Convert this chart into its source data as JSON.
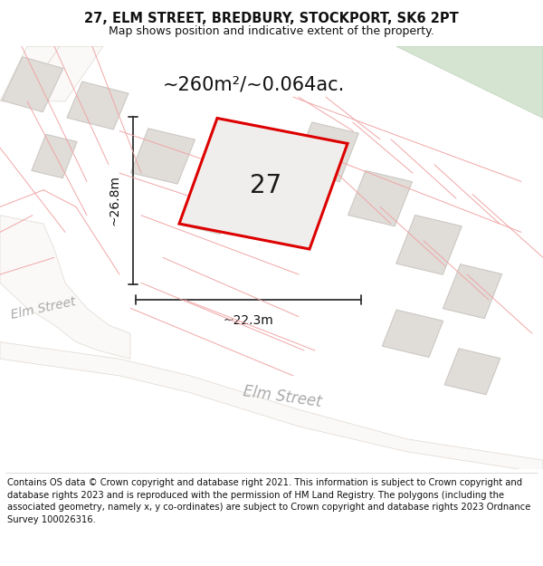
{
  "title": "27, ELM STREET, BREDBURY, STOCKPORT, SK6 2PT",
  "subtitle": "Map shows position and indicative extent of the property.",
  "area_text": "~260m²/~0.064ac.",
  "width_label": "~22.3m",
  "height_label": "~26.8m",
  "property_number": "27",
  "footer": "Contains OS data © Crown copyright and database right 2021. This information is subject to Crown copyright and database rights 2023 and is reproduced with the permission of HM Land Registry. The polygons (including the associated geometry, namely x, y co-ordinates) are subject to Crown copyright and database rights 2023 Ordnance Survey 100026316.",
  "map_bg": "#f8f7f6",
  "bldg_fc": "#e0ddd9",
  "bldg_ec": "#c8c4c0",
  "road_fc": "#faf9f8",
  "road_ec": "#e0d8d0",
  "green_fc": "#d4e4d0",
  "green_ec": "none",
  "red_line": "#f0a0a0",
  "prop_fc": "#f0eeec",
  "prop_ec": "#dd0000",
  "dim_color": "#303030",
  "street_color": "#aaaaaa",
  "title_color": "#111111",
  "footer_color": "#111111",
  "white": "#ffffff",
  "title_fontsize": 10.5,
  "subtitle_fontsize": 9,
  "footer_fontsize": 7.2,
  "prop_label_fs": 20,
  "area_fs": 15,
  "dim_fs": 10,
  "street_fs_upper": 10,
  "street_fs_lower": 12
}
